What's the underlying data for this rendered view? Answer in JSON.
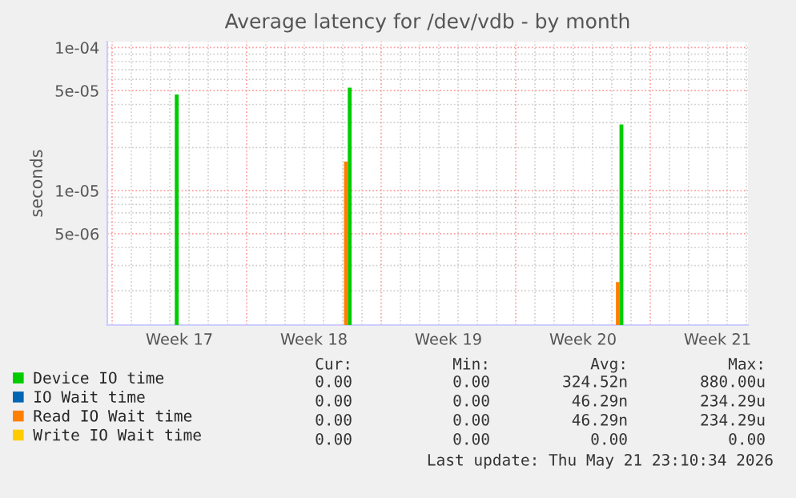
{
  "chart_data": {
    "type": "bar",
    "title": "Average latency for /dev/vdb - by month",
    "ylabel": "seconds",
    "x": [
      "2026-04-23T08:40",
      "2026-05-02T08:40",
      "2026-05-16T12:00"
    ],
    "series": [
      {
        "name": "Device IO time",
        "color": "#00cc00",
        "values": [
          4.7e-05,
          5.25e-05,
          2.9e-05
        ]
      },
      {
        "name": "IO Wait time",
        "color": "#0066b3",
        "values": [
          null,
          null,
          null
        ]
      },
      {
        "name": "Read IO Wait time",
        "color": "#ff8000",
        "x": [
          "2026-05-02T04:00",
          "2026-05-16T07:30"
        ],
        "values": [
          1.6e-05,
          2.3e-06
        ]
      },
      {
        "name": "Write IO Wait time",
        "color": "#ffcc00",
        "values": [
          null,
          null,
          null
        ]
      }
    ],
    "log": true,
    "ylim": [
      1.15e-06,
      0.00011
    ],
    "yticks": [
      {
        "value": 0.0001,
        "label": "1e-04"
      },
      {
        "value": 5e-05,
        "label": "5e-05"
      },
      {
        "value": 1e-05,
        "label": "1e-05"
      },
      {
        "value": 5e-06,
        "label": "5e-06"
      }
    ],
    "xlim": [
      "2026-04-19T18:00",
      "2026-05-23T02:00"
    ],
    "xticks": [
      {
        "value": "2026-04-20",
        "label": null
      },
      {
        "value": "2026-04-27",
        "label": null
      },
      {
        "value": "2026-05-04",
        "label": null
      },
      {
        "value": "2026-05-11",
        "label": null
      },
      {
        "value": "2026-05-18",
        "label": null
      },
      {
        "value": "2026-04-23T12:00",
        "label": "Week 17"
      },
      {
        "value": "2026-04-30T12:00",
        "label": "Week 18"
      },
      {
        "value": "2026-05-07T12:00",
        "label": "Week 19"
      },
      {
        "value": "2026-05-14T12:00",
        "label": "Week 20"
      },
      {
        "value": "2026-05-21T12:00",
        "label": "Week 21"
      }
    ],
    "grid": true,
    "legend": "bottom",
    "annotations": [
      "Cur:",
      "Min:",
      "Avg:",
      "Max:",
      "0.00",
      "0.00",
      "324.52n",
      "880.00u",
      "0.00",
      "0.00",
      "46.29n",
      "234.29u",
      "0.00",
      "0.00",
      "46.29n",
      "234.29u",
      "0.00",
      "0.00",
      "0.00",
      "0.00",
      "Last update: Thu May 21 23:10:34 2026"
    ]
  }
}
